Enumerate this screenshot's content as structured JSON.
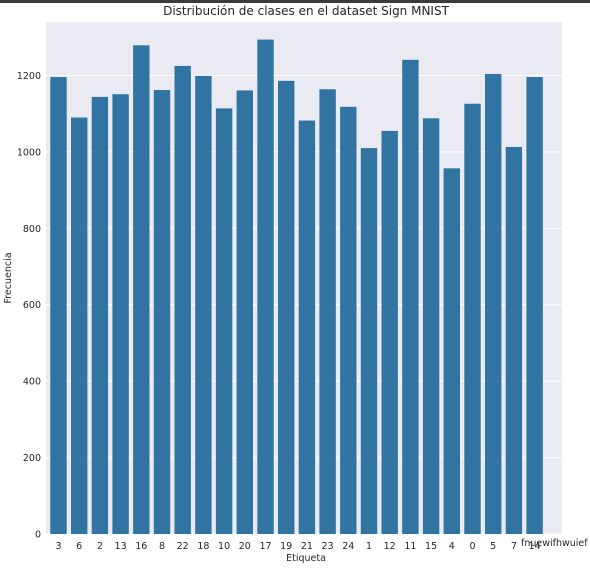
{
  "chart_data": {
    "type": "bar",
    "title": "Distribución de clases en el dataset Sign MNIST",
    "xlabel": "Etiqueta",
    "ylabel": "Frecuencia",
    "categories": [
      "3",
      "6",
      "2",
      "13",
      "16",
      "8",
      "22",
      "18",
      "10",
      "20",
      "17",
      "19",
      "21",
      "23",
      "24",
      "1",
      "12",
      "11",
      "15",
      "4",
      "0",
      "5",
      "7",
      "14"
    ],
    "values": [
      1196,
      1090,
      1144,
      1151,
      1279,
      1162,
      1225,
      1199,
      1114,
      1161,
      1294,
      1186,
      1082,
      1164,
      1118,
      1010,
      1055,
      1241,
      1088,
      957,
      1126,
      1204,
      1013,
      1196
    ],
    "ylim": [
      0,
      1340
    ],
    "yticks": [
      0,
      200,
      400,
      600,
      800,
      1000,
      1200
    ],
    "grid": true,
    "bar_color": "#3274a1",
    "background": "#eaeaf2",
    "annotation": "fnuewifhwuief"
  }
}
